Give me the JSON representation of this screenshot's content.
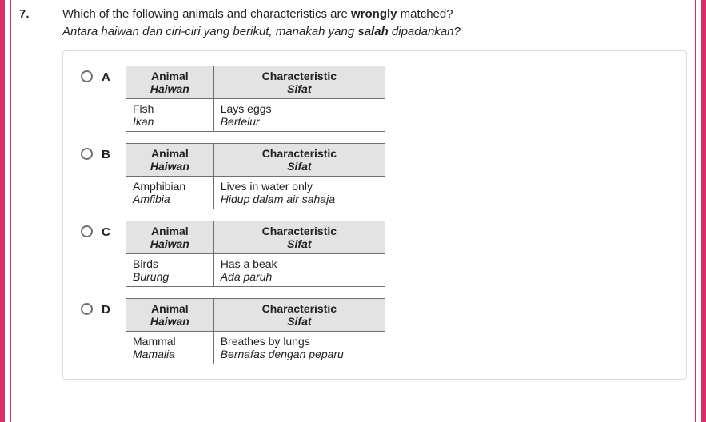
{
  "question": {
    "number": "7.",
    "text_en_before": "Which of the following animals and characteristics are ",
    "text_en_bold": "wrongly",
    "text_en_after": " matched?",
    "text_ms_before": "Antara haiwan dan ciri-ciri yang berikut, manakah yang ",
    "text_ms_bold": "salah",
    "text_ms_after": " dipadankan?"
  },
  "headers": {
    "animal_en": "Animal",
    "animal_ms": "Haiwan",
    "char_en": "Characteristic",
    "char_ms": "Sifat"
  },
  "options": [
    {
      "label": "A",
      "animal_en": "Fish",
      "animal_ms": "Ikan",
      "char_en": "Lays eggs",
      "char_ms": "Bertelur"
    },
    {
      "label": "B",
      "animal_en": "Amphibian",
      "animal_ms": "Amfibia",
      "char_en": "Lives in water only",
      "char_ms": "Hidup dalam air sahaja"
    },
    {
      "label": "C",
      "animal_en": "Birds",
      "animal_ms": "Burung",
      "char_en": "Has a beak",
      "char_ms": "Ada paruh"
    },
    {
      "label": "D",
      "animal_en": "Mammal",
      "animal_ms": "Mamalia",
      "char_en": "Breathes by lungs",
      "char_ms": "Bernafas dengan peparu"
    }
  ],
  "colors": {
    "accent": "#d82f6a",
    "border": "#dcdcdc",
    "table_border": "#6f6f6f",
    "header_bg": "#e3e3e3",
    "text": "#222222",
    "background": "#ffffff"
  }
}
